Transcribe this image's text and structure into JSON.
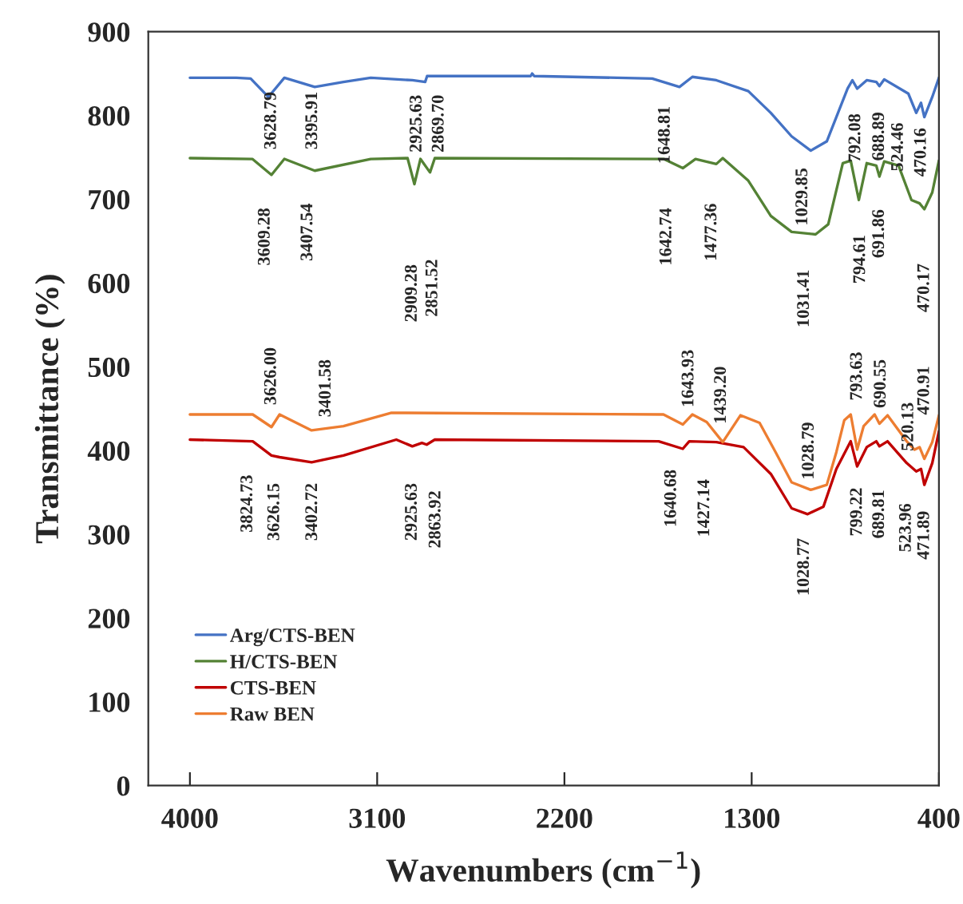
{
  "chart_data": {
    "type": "line",
    "xlabel": "Wavenumbers (cm$^{−1}$)",
    "ylabel": "Transmittance (%)",
    "xlim": [
      4200,
      400
    ],
    "xticks": [
      4000,
      3100,
      2200,
      1300,
      400
    ],
    "ylim": [
      0,
      900
    ],
    "yticks": [
      0,
      100,
      200,
      300,
      400,
      500,
      600,
      700,
      800,
      900
    ],
    "grid": false,
    "legend": "lower left",
    "marker": "none",
    "line_style": "solid",
    "series": [
      {
        "name": "Arg/CTS-BEN",
        "color": "#4472c4",
        "x": [
          4000,
          3777,
          3708,
          3623,
          3546,
          3400,
          3262,
          3131,
          2931,
          2869,
          2860,
          2362,
          2355,
          2345,
          1778,
          1647,
          1585,
          1470,
          1316,
          1208,
          1108,
          1016,
          939,
          893,
          839,
          816,
          793,
          747,
          701,
          686,
          663,
          547,
          509,
          486,
          470,
          432,
          400
        ],
        "values": [
          845,
          845,
          844,
          822,
          845,
          834,
          840,
          845,
          842,
          840,
          847,
          847,
          850,
          847,
          844,
          834,
          846,
          842,
          829,
          803,
          775,
          758,
          769,
          798,
          832,
          842,
          832,
          842,
          840,
          835,
          843,
          826,
          803,
          815,
          798,
          822,
          845
        ]
      },
      {
        "name": "H/CTS-BEN",
        "color": "#548235",
        "x": [
          4000,
          3700,
          3608,
          3546,
          3400,
          3131,
          2954,
          2921,
          2892,
          2846,
          2823,
          1723,
          1631,
          1570,
          1470,
          1439,
          1316,
          1208,
          1108,
          993,
          932,
          862,
          824,
          785,
          747,
          701,
          686,
          663,
          594,
          532,
          493,
          470,
          432,
          400
        ],
        "values": [
          749,
          748,
          729,
          748,
          734,
          748,
          749,
          718,
          748,
          732,
          749,
          748,
          737,
          748,
          742,
          749,
          722,
          680,
          661,
          658,
          670,
          743,
          746,
          699,
          743,
          740,
          727,
          745,
          740,
          699,
          695,
          688,
          708,
          746
        ]
      },
      {
        "name": "CTS-BEN",
        "color": "#c00000",
        "x": [
          4000,
          3698,
          3608,
          3569,
          3415,
          3262,
          3008,
          2931,
          2885,
          2862,
          2823,
          1747,
          1631,
          1600,
          1470,
          1339,
          1208,
          1108,
          1031,
          955,
          893,
          824,
          793,
          747,
          701,
          686,
          647,
          555,
          509,
          486,
          470,
          432,
          400
        ],
        "values": [
          413,
          411,
          394,
          392,
          386,
          394,
          413,
          405,
          409,
          407,
          413,
          411,
          402,
          411,
          410,
          404,
          372,
          331,
          324,
          333,
          378,
          411,
          381,
          404,
          411,
          405,
          411,
          385,
          375,
          378,
          359,
          385,
          423
        ]
      },
      {
        "name": "Raw BEN",
        "color": "#ed7d31",
        "x": [
          4000,
          3698,
          3608,
          3569,
          3415,
          3262,
          3031,
          1724,
          1631,
          1585,
          1516,
          1439,
          1354,
          1262,
          1185,
          1108,
          1016,
          939,
          893,
          855,
          824,
          793,
          762,
          709,
          686,
          647,
          555,
          517,
          493,
          470,
          432,
          400
        ],
        "values": [
          443,
          443,
          428,
          443,
          424,
          429,
          445,
          443,
          431,
          443,
          434,
          410,
          442,
          433,
          398,
          362,
          353,
          359,
          398,
          436,
          443,
          401,
          429,
          443,
          432,
          442,
          411,
          401,
          404,
          390,
          410,
          442
        ]
      }
    ],
    "annotations": [
      "3628.79",
      "3395.91",
      "2925.63",
      "2869.70",
      "1648.81",
      "1029.85",
      "792.08",
      "688.89",
      "524.46",
      "470.16",
      "3609.28",
      "3407.54",
      "2909.28",
      "2851.52",
      "1642.74",
      "1477.36",
      "1031.41",
      "794.61",
      "691.86",
      "470.17",
      "3626.00",
      "3401.58",
      "1643.93",
      "1439.20",
      "1028.79",
      "793.63",
      "690.55",
      "520.13",
      "470.91",
      "3824.73",
      "3626.15",
      "3402.72",
      "2925.63",
      "2863.92",
      "1640.68",
      "1427.14",
      "1028.77",
      "799.22",
      "689.81",
      "523.96",
      "471.89"
    ]
  }
}
